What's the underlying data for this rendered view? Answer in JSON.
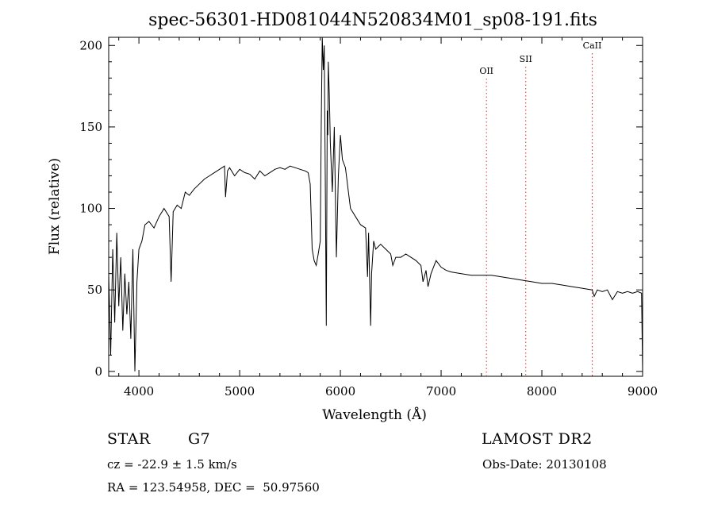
{
  "chart_data": {
    "type": "line",
    "title": "spec-56301-HD081044N520834M01_sp08-191.fits",
    "xlabel": "Wavelength (Å)",
    "ylabel": "Flux (relative)",
    "xlim": [
      3700,
      9000
    ],
    "ylim": [
      -3,
      205
    ],
    "xticks": [
      4000,
      5000,
      6000,
      7000,
      8000,
      9000
    ],
    "yticks": [
      0,
      50,
      100,
      150,
      200
    ],
    "grid": false,
    "line_color": "#000000",
    "marker_color": "#e03030",
    "series": [
      {
        "x": [
          3700,
          3720,
          3740,
          3760,
          3780,
          3800,
          3820,
          3840,
          3860,
          3880,
          3900,
          3920,
          3940,
          3960,
          3980,
          4000,
          4030,
          4060,
          4100,
          4150,
          4200,
          4250,
          4300,
          4320,
          4340,
          4380,
          4420,
          4460,
          4500,
          4550,
          4600,
          4650,
          4700,
          4750,
          4800,
          4850,
          4860,
          4880,
          4900,
          4950,
          5000,
          5050,
          5100,
          5150,
          5200,
          5250,
          5300,
          5350,
          5400,
          5450,
          5500,
          5550,
          5600,
          5650,
          5680,
          5700,
          5720,
          5740,
          5760,
          5780,
          5800,
          5810,
          5820,
          5830,
          5840,
          5850,
          5860,
          5870,
          5875,
          5880,
          5890,
          5900,
          5920,
          5940,
          5960,
          5980,
          6000,
          6020,
          6050,
          6080,
          6100,
          6150,
          6200,
          6250,
          6270,
          6280,
          6300,
          6310,
          6330,
          6350,
          6400,
          6450,
          6500,
          6520,
          6550,
          6600,
          6650,
          6700,
          6750,
          6800,
          6820,
          6850,
          6870,
          6900,
          6950,
          7000,
          7050,
          7100,
          7200,
          7300,
          7400,
          7500,
          7600,
          7700,
          7800,
          7900,
          8000,
          8100,
          8200,
          8300,
          8400,
          8500,
          8520,
          8550,
          8600,
          8650,
          8700,
          8750,
          8800,
          8850,
          8900,
          8950,
          8990,
          9000
        ],
        "y": [
          60,
          10,
          75,
          30,
          85,
          40,
          70,
          25,
          60,
          35,
          55,
          20,
          75,
          0,
          55,
          75,
          80,
          90,
          92,
          88,
          95,
          100,
          95,
          55,
          98,
          102,
          100,
          110,
          108,
          112,
          115,
          118,
          120,
          122,
          124,
          126,
          107,
          123,
          125,
          120,
          124,
          122,
          121,
          118,
          123,
          120,
          122,
          124,
          125,
          124,
          126,
          125,
          124,
          123,
          122,
          115,
          75,
          68,
          65,
          72,
          80,
          150,
          205,
          185,
          200,
          120,
          28,
          160,
          145,
          190,
          170,
          140,
          110,
          150,
          70,
          120,
          145,
          130,
          125,
          110,
          100,
          95,
          90,
          88,
          58,
          85,
          28,
          60,
          80,
          75,
          78,
          75,
          72,
          65,
          70,
          70,
          72,
          70,
          68,
          65,
          55,
          62,
          52,
          60,
          68,
          64,
          62,
          61,
          60,
          59,
          59,
          59,
          58,
          57,
          56,
          55,
          54,
          54,
          53,
          52,
          51,
          50,
          46,
          50,
          49,
          50,
          44,
          49,
          48,
          49,
          48,
          49,
          48,
          0
        ]
      }
    ],
    "line_markers": [
      {
        "label": "OII",
        "x": 7450
      },
      {
        "label": "SII",
        "x": 7840
      },
      {
        "label": "CaII",
        "x": 8500
      }
    ]
  },
  "info": {
    "object_class": "STAR",
    "subclass": "G7",
    "survey": "LAMOST DR2",
    "cz": "cz = -22.9 ± 1.5 km/s",
    "obs_date": "Obs-Date: 20130108",
    "coords": "RA = 123.54958, DEC =  50.97560"
  }
}
